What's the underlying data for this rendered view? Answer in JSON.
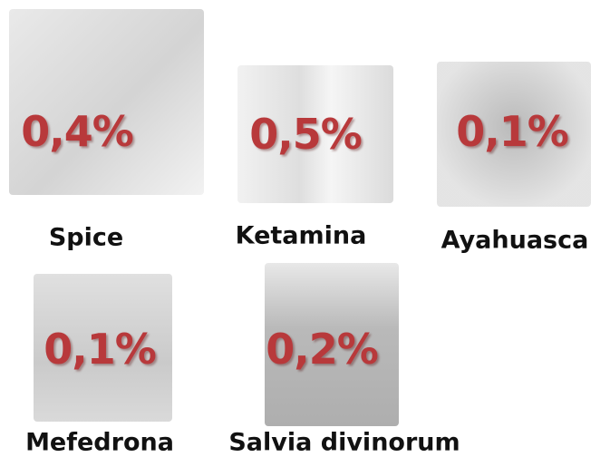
{
  "items": [
    {
      "name": "Spice",
      "value": "0,4%"
    },
    {
      "name": "Ketamina",
      "value": "0,5%"
    },
    {
      "name": "Ayahuasca",
      "value": "0,1%"
    },
    {
      "name": "Mefedrona",
      "value": "0,1%"
    },
    {
      "name": "Salvia divinorum",
      "value": "0,2%"
    }
  ]
}
